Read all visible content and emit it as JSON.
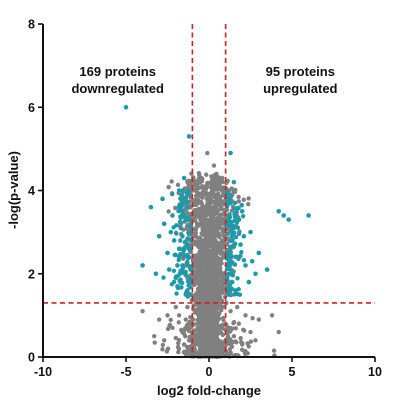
{
  "chart_data": {
    "type": "scatter",
    "title": "",
    "xlabel": "log2 fold-change",
    "ylabel": "-log(p-value)",
    "xlim": [
      -10,
      10
    ],
    "ylim": [
      0,
      8
    ],
    "x_ticks": [
      -10,
      -5,
      0,
      5,
      10
    ],
    "y_ticks": [
      0,
      2,
      4,
      6,
      8
    ],
    "thresholds": {
      "log2fc": [
        -1,
        1
      ],
      "neg_log_p": 1.3
    },
    "annotations": [
      {
        "lines": [
          "169 proteins",
          "downregulated"
        ],
        "x": -5.5,
        "y": 6.75
      },
      {
        "lines": [
          "95 proteins",
          "upregulated"
        ],
        "x": 5.5,
        "y": 6.75
      }
    ],
    "colors": {
      "significant": "#1a9aaa",
      "not_significant": "#808080",
      "threshold": "#cc2222"
    },
    "significant_points": [
      [
        -5.0,
        6.0
      ],
      [
        -1.2,
        5.3
      ],
      [
        -1.5,
        4.3
      ],
      [
        -3.5,
        3.6
      ],
      [
        -2.8,
        3.8
      ],
      [
        -2.2,
        3.4
      ],
      [
        -1.8,
        4.0
      ],
      [
        -1.4,
        3.8
      ],
      [
        -3.0,
        2.9
      ],
      [
        -2.5,
        2.5
      ],
      [
        -1.9,
        2.2
      ],
      [
        -1.6,
        2.9
      ],
      [
        -4.0,
        2.2
      ],
      [
        -2.0,
        1.9
      ],
      [
        -1.3,
        1.6
      ],
      [
        -1.7,
        3.1
      ],
      [
        -1.5,
        2.6
      ],
      [
        -1.2,
        3.3
      ],
      [
        -2.3,
        3.0
      ],
      [
        -1.1,
        2.1
      ],
      [
        -3.2,
        2.0
      ],
      [
        -1.4,
        1.5
      ],
      [
        -2.7,
        3.2
      ],
      [
        -1.8,
        2.6
      ],
      [
        -1.3,
        3.6
      ],
      [
        -1.6,
        2.2
      ],
      [
        -2.1,
        2.8
      ],
      [
        -1.2,
        2.4
      ],
      [
        -1.9,
        1.7
      ],
      [
        -2.4,
        2.1
      ],
      [
        -1.5,
        3.4
      ],
      [
        -1.1,
        2.8
      ],
      [
        1.3,
        4.9
      ],
      [
        1.5,
        4.2
      ],
      [
        1.2,
        3.8
      ],
      [
        1.8,
        3.3
      ],
      [
        2.0,
        3.5
      ],
      [
        2.5,
        3.0
      ],
      [
        1.4,
        2.8
      ],
      [
        1.7,
        2.4
      ],
      [
        2.2,
        2.2
      ],
      [
        3.0,
        2.5
      ],
      [
        1.3,
        2.0
      ],
      [
        2.8,
        2.0
      ],
      [
        1.6,
        1.6
      ],
      [
        3.5,
        2.1
      ],
      [
        4.5,
        3.4
      ],
      [
        4.8,
        3.3
      ],
      [
        6.0,
        3.4
      ],
      [
        4.2,
        3.5
      ],
      [
        1.2,
        1.5
      ],
      [
        1.9,
        2.7
      ],
      [
        2.4,
        1.8
      ],
      [
        1.5,
        3.1
      ],
      [
        1.1,
        2.5
      ],
      [
        2.1,
        2.9
      ],
      [
        1.4,
        1.8
      ],
      [
        2.6,
        2.3
      ]
    ],
    "nonsignificant_points": [
      [
        -0.1,
        4.9
      ],
      [
        0.3,
        4.6
      ],
      [
        0.8,
        4.3
      ],
      [
        -0.4,
        4.1
      ],
      [
        0.6,
        3.7
      ],
      [
        0.2,
        3.9
      ],
      [
        -0.2,
        3.5
      ],
      [
        -4.0,
        1.1
      ],
      [
        -3.0,
        0.9
      ],
      [
        -2.5,
        1.0
      ],
      [
        -2.0,
        1.2
      ],
      [
        -2.2,
        0.7
      ],
      [
        -1.6,
        0.6
      ],
      [
        -1.4,
        0.9
      ],
      [
        -1.2,
        0.4
      ],
      [
        -1.8,
        1.0
      ],
      [
        -1.5,
        0.3
      ],
      [
        -1.3,
        1.2
      ],
      [
        -3.3,
        0.5
      ],
      [
        -2.7,
        0.4
      ],
      [
        1.5,
        0.5
      ],
      [
        1.8,
        0.8
      ],
      [
        2.2,
        1.0
      ],
      [
        2.5,
        0.6
      ],
      [
        3.0,
        0.9
      ],
      [
        3.8,
        1.0
      ],
      [
        1.3,
        1.1
      ],
      [
        2.0,
        0.3
      ],
      [
        1.7,
        1.2
      ],
      [
        2.8,
        0.4
      ],
      [
        4.2,
        0.6
      ],
      [
        1.2,
        0.7
      ],
      [
        -1.2,
        2.6
      ],
      [
        -1.1,
        3.1
      ],
      [
        -1.3,
        1.9
      ],
      [
        -1.4,
        2.2
      ],
      [
        -1.15,
        3.6
      ],
      [
        -1.25,
        1.5
      ],
      [
        1.15,
        2.2
      ],
      [
        1.25,
        3.0
      ],
      [
        1.1,
        1.7
      ],
      [
        1.3,
        2.6
      ],
      [
        1.2,
        4.0
      ]
    ]
  }
}
